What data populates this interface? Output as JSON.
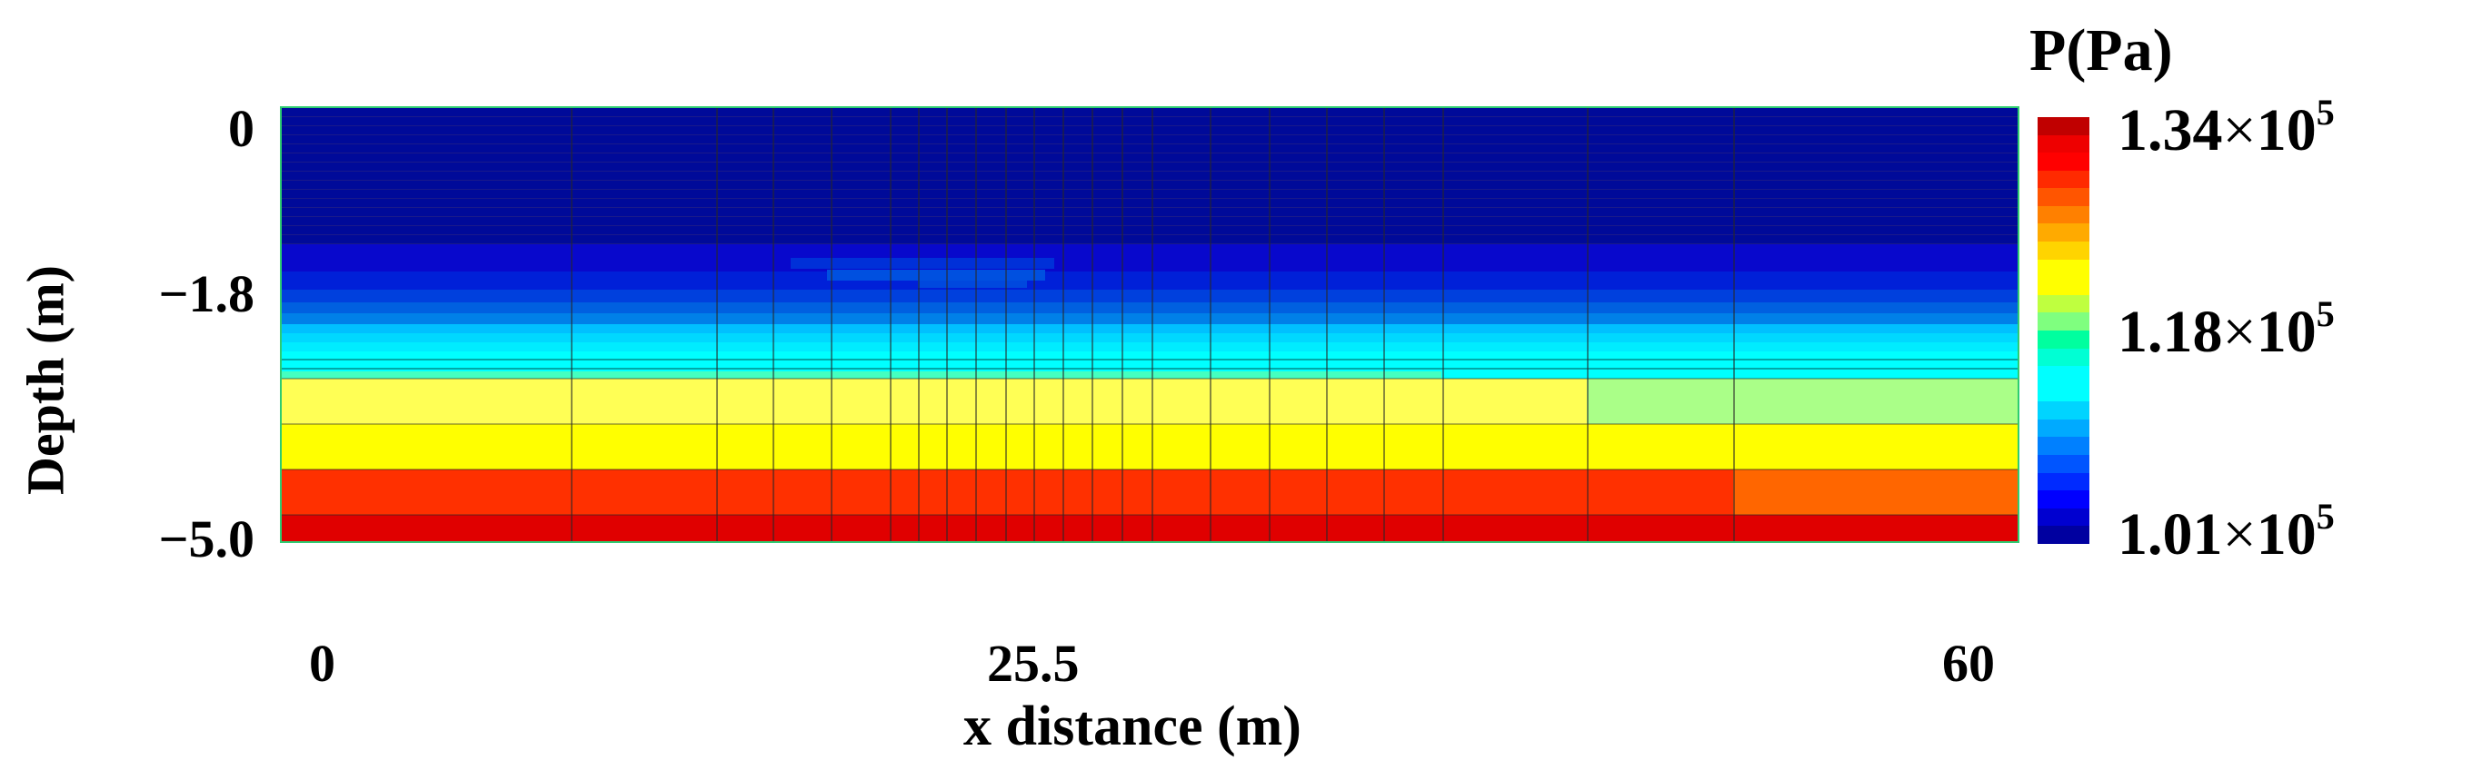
{
  "chart_data": {
    "type": "heatmap",
    "title": "",
    "xlabel": "x distance (m)",
    "ylabel": "Depth (m)",
    "colorbar_label": "P(Pa)",
    "x_ticks": [
      "0",
      "25.5",
      "60"
    ],
    "y_ticks": [
      "0",
      "−1.8",
      "−5.0"
    ],
    "xlim": [
      0,
      60
    ],
    "ylim": [
      -5.0,
      0
    ],
    "colorbar_ticks": [
      {
        "mantissa": "1.34",
        "times": "×",
        "base": "10",
        "exp": "5",
        "value": 134000
      },
      {
        "mantissa": "1.18",
        "times": "×",
        "base": "10",
        "exp": "5",
        "value": 118000
      },
      {
        "mantissa": "1.01",
        "times": "×",
        "base": "10",
        "exp": "5",
        "value": 101000
      }
    ],
    "colorbar_range": [
      101000,
      134000
    ],
    "colormap": "jet",
    "colorbar_steps": [
      "#c00000",
      "#ee0000",
      "#ff0000",
      "#ff2a00",
      "#ff5500",
      "#ff8000",
      "#ffaa00",
      "#ffd400",
      "#ffff00",
      "#ffff00",
      "#bfff3f",
      "#7fff7f",
      "#00ff9f",
      "#00ffd4",
      "#00ffff",
      "#00ffff",
      "#00d4ff",
      "#00aaff",
      "#0080ff",
      "#0055ff",
      "#002aff",
      "#0000ff",
      "#0000d0",
      "#0000a0"
    ],
    "depth_layers": [
      {
        "depth_range_m": [
          0,
          -1.5
        ],
        "approx_pressure_pa": 101000,
        "color": "#000a99"
      },
      {
        "depth_range_m": [
          -1.5,
          -2.6
        ],
        "approx_pressure_pa": 104000,
        "color": "gradient blue"
      },
      {
        "depth_range_m": [
          -2.6,
          -3.2
        ],
        "approx_pressure_pa": 110000,
        "color": "#00ffff"
      },
      {
        "depth_range_m": [
          -3.2,
          -3.7
        ],
        "approx_pressure_pa": 120000,
        "color": "#ffff55",
        "note": "light green (#aaff88) for x > ~45 m"
      },
      {
        "depth_range_m": [
          -3.7,
          -4.2
        ],
        "approx_pressure_pa": 122000,
        "color": "#ffff00"
      },
      {
        "depth_range_m": [
          -4.2,
          -4.7
        ],
        "approx_pressure_pa": 129000,
        "color": "#ff3000",
        "note": "orange (#ff6600) for x > ~52 m"
      },
      {
        "depth_range_m": [
          -4.7,
          -5.0
        ],
        "approx_pressure_pa": 132000,
        "color": "#e00000"
      }
    ],
    "grid": {
      "vertical_mesh_lines": true,
      "refined_near_x_m": 25.5
    },
    "legend_position": "right"
  }
}
